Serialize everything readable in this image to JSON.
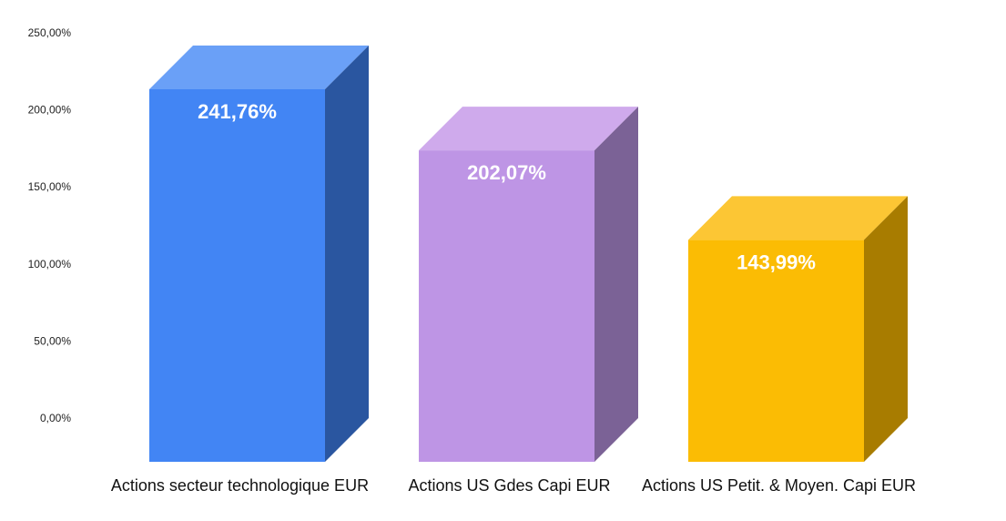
{
  "chart_data": {
    "type": "bar",
    "style": "3d",
    "title": "",
    "xlabel": "",
    "ylabel": "",
    "categories": [
      "Actions secteur technologique EUR",
      "Actions US Gdes Capi EUR",
      "Actions US Petit. & Moyen. Capi EUR"
    ],
    "values": [
      241.76,
      202.07,
      143.99
    ],
    "data_labels": [
      "241,76%",
      "202,07%",
      "143,99%"
    ],
    "ylim": [
      0,
      250
    ],
    "yticks": [
      0,
      50,
      100,
      150,
      200,
      250
    ],
    "ytick_labels": [
      "0,00%",
      "50,00%",
      "100,00%",
      "150,00%",
      "200,00%",
      "250,00%"
    ],
    "grid": false,
    "legend": "none",
    "colors": {
      "bars": [
        {
          "front": "#4285f4",
          "top": "#6aa0f7",
          "side": "#2a56a0"
        },
        {
          "front": "#be95e5",
          "top": "#cfaaec",
          "side": "#7b6296"
        },
        {
          "front": "#fbbc04",
          "top": "#fcc634",
          "side": "#a87c00"
        }
      ]
    }
  }
}
